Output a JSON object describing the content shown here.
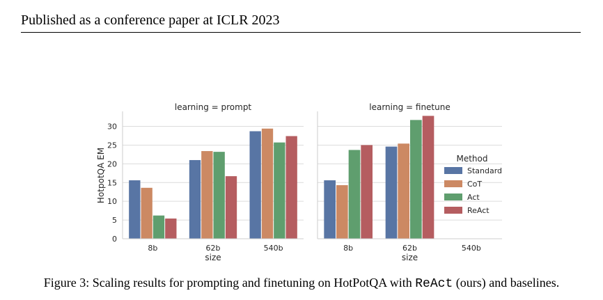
{
  "header": {
    "text": "Published as a conference paper at ICLR 2023"
  },
  "caption": {
    "prefix": "Figure 3: Scaling results for prompting and finetuning on HotPotQA with ",
    "mono": "ReAct",
    "suffix": " (ours) and baselines."
  },
  "chart_data": {
    "type": "bar",
    "ylabel": "HotpotQA EM",
    "xlabel": "size",
    "ylim": [
      0,
      34
    ],
    "yticks": [
      0,
      5,
      10,
      15,
      20,
      25,
      30
    ],
    "categories": [
      "8b",
      "62b",
      "540b"
    ],
    "legend": {
      "title": "Method",
      "placement": "right"
    },
    "series_colors": [
      "#5875a4",
      "#cc8963",
      "#5f9e6e",
      "#b55d60"
    ],
    "panels": [
      {
        "title": "learning = prompt",
        "series": [
          {
            "name": "Standard",
            "values": [
              15.6,
              21.0,
              28.7
            ]
          },
          {
            "name": "CoT",
            "values": [
              13.6,
              23.4,
              29.4
            ]
          },
          {
            "name": "Act",
            "values": [
              6.2,
              23.2,
              25.7
            ]
          },
          {
            "name": "ReAct",
            "values": [
              5.4,
              16.7,
              27.4
            ]
          }
        ]
      },
      {
        "title": "learning = finetune",
        "series": [
          {
            "name": "Standard",
            "values": [
              15.6,
              24.6,
              null
            ]
          },
          {
            "name": "CoT",
            "values": [
              14.3,
              25.4,
              null
            ]
          },
          {
            "name": "Act",
            "values": [
              23.7,
              31.7,
              null
            ]
          },
          {
            "name": "ReAct",
            "values": [
              25.0,
              32.8,
              null
            ]
          }
        ]
      }
    ]
  }
}
